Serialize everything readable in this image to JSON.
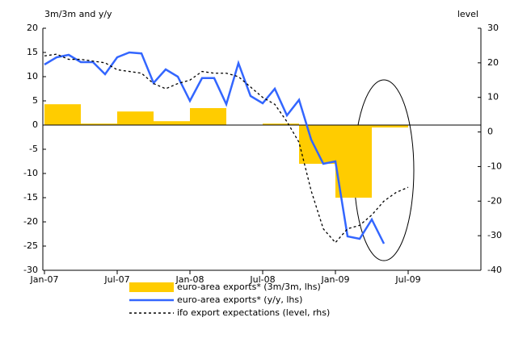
{
  "chart_data": {
    "type": "combo",
    "y_label": "3m/3m and y/y",
    "y2_label": "level",
    "xlim": [
      0,
      36
    ],
    "xticks": [
      {
        "value": 0,
        "label": "Jan-07"
      },
      {
        "value": 6,
        "label": "Jul-07"
      },
      {
        "value": 12,
        "label": "Jan-08"
      },
      {
        "value": 18,
        "label": "Jul-08"
      },
      {
        "value": 24,
        "label": "Jan-09"
      },
      {
        "value": 30,
        "label": "Jul-09"
      }
    ],
    "ylim": [
      -30,
      20
    ],
    "yticks": [
      -30,
      -25,
      -20,
      -15,
      -10,
      -5,
      0,
      5,
      10,
      15,
      20
    ],
    "y2lim": [
      -40,
      30
    ],
    "y2ticks": [
      -40,
      -30,
      -20,
      -10,
      0,
      10,
      20,
      30
    ],
    "series": [
      {
        "name": "euro-area exports* (3m/3m, lhs)",
        "type": "bar",
        "color": "#ffcc00",
        "x": [
          0,
          3,
          6,
          9,
          12,
          15,
          18,
          21,
          24,
          27
        ],
        "values": [
          4.3,
          0.3,
          2.8,
          0.8,
          3.5,
          0,
          0.3,
          -8,
          -15,
          -0.5
        ]
      },
      {
        "name": "euro-area exports* (y/y, lhs)",
        "type": "line",
        "color": "#3366ff",
        "x": [
          0,
          1,
          2,
          3,
          4,
          5,
          6,
          7,
          8,
          9,
          10,
          11,
          12,
          13,
          14,
          15,
          16,
          17,
          18,
          19,
          20,
          21,
          22,
          23,
          24,
          25,
          26,
          27,
          28
        ],
        "values": [
          12.5,
          14,
          14.5,
          13,
          13,
          10.5,
          14,
          15,
          14.8,
          8.7,
          11.5,
          10,
          5,
          9.7,
          9.7,
          4.3,
          12.8,
          6,
          4.5,
          7.5,
          2,
          5.2,
          -3,
          -8,
          -7.5,
          -23,
          -23.5,
          -19.5,
          -24.5
        ]
      },
      {
        "name": "ifo export expectations (level, rhs)",
        "type": "line",
        "style": "dashed",
        "axis": "y2",
        "color": "#000000",
        "x": [
          0,
          1,
          2,
          3,
          4,
          5,
          6,
          7,
          8,
          9,
          10,
          11,
          12,
          13,
          14,
          15,
          16,
          17,
          18,
          19,
          20,
          21,
          22,
          23,
          24,
          25,
          26,
          27,
          28,
          29,
          30
        ],
        "values": [
          22,
          22.5,
          21,
          21,
          20.5,
          20,
          18,
          17.5,
          17,
          14,
          12.5,
          14,
          15,
          17.5,
          17,
          17,
          16,
          13,
          10,
          8,
          3,
          -3,
          -17,
          -28,
          -32,
          -28,
          -27,
          -24,
          -20,
          -17.5,
          -16
        ]
      }
    ]
  }
}
